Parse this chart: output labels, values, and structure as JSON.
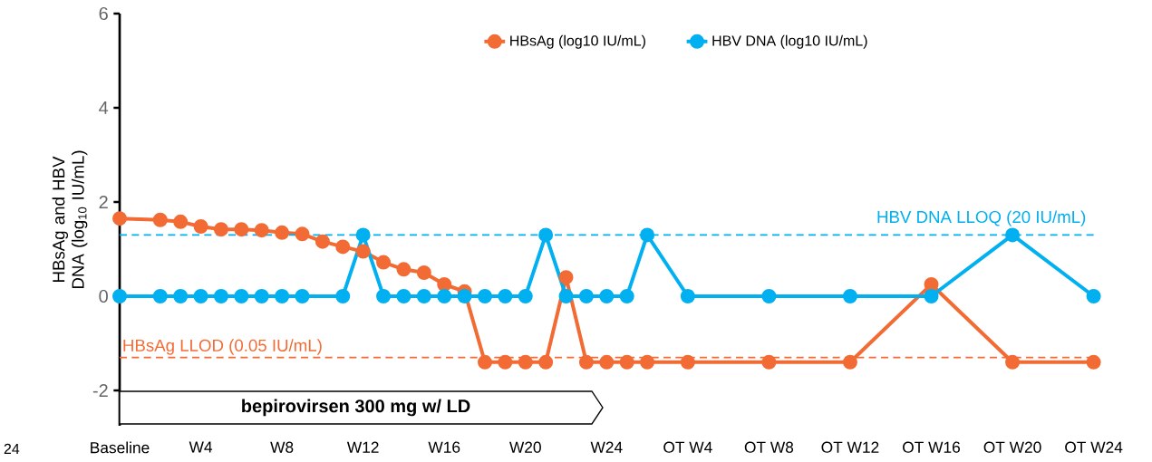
{
  "chart_data": {
    "type": "line",
    "ylabel": "HBsAg and HBV DNA (log$_{10}$ IU/mL)",
    "ylim": [
      -2.75,
      6
    ],
    "yticks": [
      -2,
      0,
      2,
      4,
      6
    ],
    "categories": [
      "Baseline",
      null,
      null,
      null,
      "W4",
      null,
      null,
      null,
      "W8",
      null,
      null,
      null,
      "W12",
      null,
      null,
      null,
      "W16",
      null,
      null,
      null,
      "W20",
      null,
      null,
      null,
      "W24",
      null,
      null,
      null,
      "OT W4",
      null,
      null,
      null,
      "OT W8",
      null,
      null,
      null,
      "OT W12",
      null,
      null,
      null,
      "OT W16",
      null,
      null,
      null,
      "OT W20",
      null,
      null,
      null,
      "OT W24"
    ],
    "series": [
      {
        "name": "HBsAg (log10 IU/mL)",
        "color": "#f26b35",
        "values": [
          1.65,
          null,
          1.62,
          1.58,
          1.48,
          1.42,
          1.42,
          1.4,
          1.35,
          1.32,
          1.16,
          1.05,
          0.95,
          0.72,
          0.57,
          0.5,
          0.25,
          0.1,
          -1.4,
          -1.4,
          -1.4,
          -1.4,
          0.4,
          -1.4,
          -1.4,
          -1.4,
          -1.4,
          null,
          -1.4,
          null,
          null,
          null,
          -1.4,
          null,
          null,
          null,
          -1.4,
          null,
          null,
          null,
          0.25,
          null,
          null,
          null,
          -1.4,
          null,
          null,
          null,
          -1.4
        ]
      },
      {
        "name": "HBV DNA (log10 IU/mL)",
        "color": "#00b0f0",
        "values": [
          0,
          null,
          0,
          0,
          0,
          0,
          0,
          0,
          0,
          0,
          null,
          0,
          1.3,
          0,
          0,
          0,
          0,
          0,
          0,
          0,
          0,
          1.3,
          0,
          0,
          0,
          0,
          1.3,
          null,
          0,
          null,
          null,
          null,
          0,
          null,
          null,
          null,
          0,
          null,
          null,
          null,
          0,
          null,
          null,
          null,
          1.3,
          null,
          null,
          null,
          0
        ]
      }
    ],
    "ref_lines": [
      {
        "axis": "y",
        "value": 1.3,
        "label": "HBV DNA LLOQ (20 IU/mL)",
        "color": "#00b0f0",
        "line_style": "dashed"
      },
      {
        "axis": "y",
        "value": -1.3,
        "label": "HBsAg LLOD (0.05 IU/mL)",
        "color": "#f26b35",
        "line_style": "dashed"
      }
    ],
    "annotations": [
      "bepirovirsen 300 mg w/ LD",
      "24"
    ],
    "marker": "circle",
    "line_style": "solid",
    "legend": "top",
    "grid": false
  }
}
